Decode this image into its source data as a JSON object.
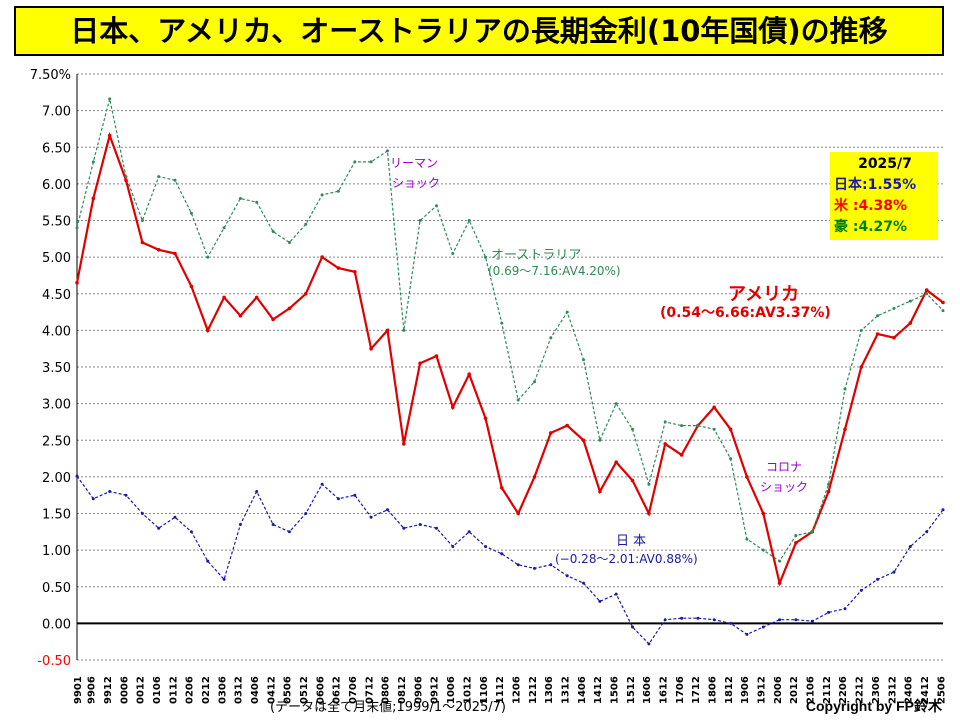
{
  "title": "日本、アメリカ、オーストラリアの長期金利(10年国債)の推移",
  "footer_note": "(データは全て月末値;1999/1〜2025/7)",
  "copyright": "Copyright by FP鈴木",
  "info_box": {
    "date": "2025/7",
    "japan": "日本:1.55%",
    "us": "米 :4.38%",
    "australia": "豪 :4.27%"
  },
  "annotations": {
    "lehman_line1": "リーマン",
    "lehman_line2": "ショック",
    "corona_line1": "コロナ",
    "corona_line2": "ショック",
    "australia_name": "オーストラリア",
    "australia_range": "(0.69〜7.16:AV4.20%)",
    "us_name": "アメリカ",
    "us_range": "(0.54〜6.66:AV3.37%)",
    "japan_name": "日 本",
    "japan_range": "(−0.28〜2.01:AV0.88%)"
  },
  "colors": {
    "us": "#e00000",
    "australia": "#2e8b57",
    "japan": "#1a1aa8",
    "lehman_text": "#9900cc",
    "corona_text": "#9900cc"
  },
  "chart_data": {
    "type": "line",
    "title": "日本、アメリカ、オーストラリアの長期金利(10年国債)の推移",
    "ylim": [
      -0.5,
      7.5
    ],
    "y_ticks": [
      "7.50%",
      "7.00",
      "6.50",
      "6.00",
      "5.50",
      "5.00",
      "4.50",
      "4.00",
      "3.50",
      "3.00",
      "2.50",
      "2.00",
      "1.50",
      "1.00",
      "0.50",
      "0.00",
      "-0.50"
    ],
    "y_tick_values": [
      7.5,
      7.0,
      6.5,
      6.0,
      5.5,
      5.0,
      4.5,
      4.0,
      3.5,
      3.0,
      2.5,
      2.0,
      1.5,
      1.0,
      0.5,
      0.0,
      -0.5
    ],
    "x_tick_labels": [
      "9901",
      "9906",
      "9912",
      "0006",
      "0012",
      "0106",
      "0112",
      "0206",
      "0212",
      "0306",
      "0312",
      "0406",
      "0412",
      "0506",
      "0512",
      "0606",
      "0612",
      "0706",
      "0712",
      "0806",
      "0812",
      "0906",
      "0912",
      "1006",
      "1012",
      "1106",
      "1112",
      "1206",
      "1212",
      "1306",
      "1312",
      "1406",
      "1412",
      "1506",
      "1512",
      "1606",
      "1612",
      "1706",
      "1712",
      "1806",
      "1812",
      "1906",
      "1912",
      "2006",
      "2012",
      "2106",
      "2112",
      "2206",
      "2212",
      "2306",
      "2312",
      "2406",
      "2412",
      "2506"
    ],
    "grid": true,
    "series": [
      {
        "name": "アメリカ",
        "color": "#e00000",
        "x": [
          "1999-01",
          "1999-07",
          "2000-01",
          "2000-07",
          "2001-01",
          "2001-07",
          "2002-01",
          "2002-07",
          "2003-01",
          "2003-07",
          "2004-01",
          "2004-07",
          "2005-01",
          "2005-07",
          "2006-01",
          "2006-07",
          "2007-01",
          "2007-07",
          "2008-01",
          "2008-07",
          "2009-01",
          "2009-07",
          "2010-01",
          "2010-07",
          "2011-01",
          "2011-07",
          "2012-01",
          "2012-07",
          "2013-01",
          "2013-07",
          "2014-01",
          "2014-07",
          "2015-01",
          "2015-07",
          "2016-01",
          "2016-07",
          "2017-01",
          "2017-07",
          "2018-01",
          "2018-07",
          "2019-01",
          "2019-07",
          "2020-01",
          "2020-07",
          "2021-01",
          "2021-07",
          "2022-01",
          "2022-07",
          "2023-01",
          "2023-07",
          "2024-01",
          "2024-07",
          "2025-01",
          "2025-07"
        ],
        "y": [
          4.65,
          5.8,
          6.66,
          6.05,
          5.2,
          5.1,
          5.05,
          4.6,
          4.0,
          4.45,
          4.2,
          4.45,
          4.15,
          4.3,
          4.5,
          5.0,
          4.85,
          4.8,
          3.75,
          4.0,
          2.45,
          3.55,
          3.65,
          2.95,
          3.4,
          2.8,
          1.85,
          1.5,
          2.0,
          2.6,
          2.7,
          2.5,
          1.8,
          2.2,
          1.95,
          1.5,
          2.45,
          2.3,
          2.7,
          2.95,
          2.65,
          2.0,
          1.5,
          0.55,
          1.1,
          1.25,
          1.8,
          2.65,
          3.5,
          3.95,
          3.9,
          4.1,
          4.55,
          4.38
        ]
      },
      {
        "name": "オーストラリア",
        "color": "#2e8b57",
        "x": [
          "1999-01",
          "1999-07",
          "2000-01",
          "2000-07",
          "2001-01",
          "2001-07",
          "2002-01",
          "2002-07",
          "2003-01",
          "2003-07",
          "2004-01",
          "2004-07",
          "2005-01",
          "2005-07",
          "2006-01",
          "2006-07",
          "2007-01",
          "2007-07",
          "2008-01",
          "2008-07",
          "2009-01",
          "2009-07",
          "2010-01",
          "2010-07",
          "2011-01",
          "2011-07",
          "2012-01",
          "2012-07",
          "2013-01",
          "2013-07",
          "2014-01",
          "2014-07",
          "2015-01",
          "2015-07",
          "2016-01",
          "2016-07",
          "2017-01",
          "2017-07",
          "2018-01",
          "2018-07",
          "2019-01",
          "2019-07",
          "2020-01",
          "2020-07",
          "2021-01",
          "2021-07",
          "2022-01",
          "2022-07",
          "2023-01",
          "2023-07",
          "2024-01",
          "2024-07",
          "2025-01",
          "2025-07"
        ],
        "y": [
          5.4,
          6.3,
          7.16,
          6.1,
          5.5,
          6.1,
          6.05,
          5.6,
          5.0,
          5.4,
          5.8,
          5.75,
          5.35,
          5.2,
          5.45,
          5.85,
          5.9,
          6.3,
          6.3,
          6.45,
          4.0,
          5.5,
          5.7,
          5.05,
          5.5,
          5.0,
          4.1,
          3.05,
          3.3,
          3.9,
          4.25,
          3.6,
          2.5,
          3.0,
          2.65,
          1.9,
          2.75,
          2.7,
          2.7,
          2.65,
          2.25,
          1.15,
          1.0,
          0.85,
          1.2,
          1.25,
          1.9,
          3.2,
          4.0,
          4.2,
          4.3,
          4.4,
          4.5,
          4.27
        ]
      },
      {
        "name": "日本",
        "color": "#1a1aa8",
        "x": [
          "1999-01",
          "1999-07",
          "2000-01",
          "2000-07",
          "2001-01",
          "2001-07",
          "2002-01",
          "2002-07",
          "2003-01",
          "2003-07",
          "2004-01",
          "2004-07",
          "2005-01",
          "2005-07",
          "2006-01",
          "2006-07",
          "2007-01",
          "2007-07",
          "2008-01",
          "2008-07",
          "2009-01",
          "2009-07",
          "2010-01",
          "2010-07",
          "2011-01",
          "2011-07",
          "2012-01",
          "2012-07",
          "2013-01",
          "2013-07",
          "2014-01",
          "2014-07",
          "2015-01",
          "2015-07",
          "2016-01",
          "2016-07",
          "2017-01",
          "2017-07",
          "2018-01",
          "2018-07",
          "2019-01",
          "2019-07",
          "2020-01",
          "2020-07",
          "2021-01",
          "2021-07",
          "2022-01",
          "2022-07",
          "2023-01",
          "2023-07",
          "2024-01",
          "2024-07",
          "2025-01",
          "2025-07"
        ],
        "y": [
          2.01,
          1.7,
          1.8,
          1.75,
          1.5,
          1.3,
          1.45,
          1.25,
          0.85,
          0.6,
          1.35,
          1.8,
          1.35,
          1.25,
          1.5,
          1.9,
          1.7,
          1.75,
          1.45,
          1.55,
          1.3,
          1.35,
          1.3,
          1.05,
          1.25,
          1.05,
          0.95,
          0.8,
          0.75,
          0.8,
          0.65,
          0.55,
          0.3,
          0.4,
          -0.05,
          -0.28,
          0.05,
          0.07,
          0.07,
          0.05,
          0.0,
          -0.15,
          -0.05,
          0.05,
          0.05,
          0.03,
          0.15,
          0.2,
          0.45,
          0.6,
          0.7,
          1.05,
          1.25,
          1.55
        ]
      }
    ]
  }
}
